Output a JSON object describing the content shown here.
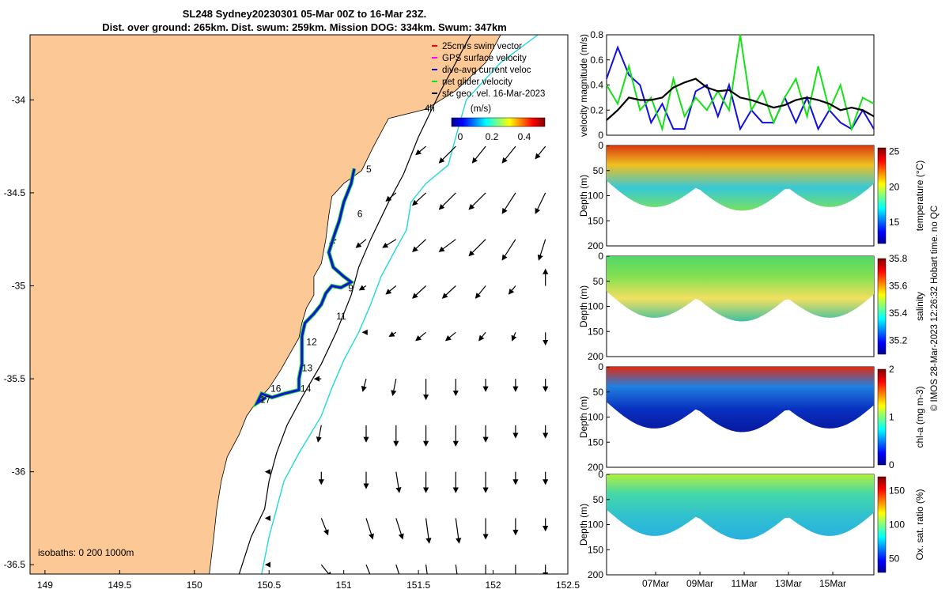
{
  "title": {
    "line1": "SL248 Sydney20230301 05-Mar 00Z to 16-Mar 23Z.",
    "line2": "Dist. over ground: 265km. Dist. swum: 259km. Mission DOG: 334km. Swum: 347km"
  },
  "colors": {
    "land": "#fbc896",
    "track": "#1010e0",
    "net_glider": "#18e018",
    "shelf_edge": "#22d8d8",
    "black": "#000000"
  },
  "chart_data": [
    {
      "type": "map",
      "name": "glider track map",
      "xlim": [
        148.9,
        152.5
      ],
      "ylim": [
        -36.55,
        -33.65
      ],
      "x_ticks": [
        149,
        149.5,
        150,
        150.5,
        151,
        151.5,
        152,
        152.5
      ],
      "x_tick_labels": [
        "149",
        "149.5",
        "150",
        "150.5",
        "151",
        "151.5",
        "152",
        "152.5"
      ],
      "y_ticks": [
        -34,
        -34.5,
        -35,
        -35.5,
        -36,
        -36.5
      ],
      "y_tick_labels": [
        "-34",
        "-34.5",
        "-35",
        "-35.5",
        "-36",
        "-36.5"
      ],
      "legend": [
        {
          "label": "25cm/s swim vector",
          "color": "#ff0000"
        },
        {
          "label": "GPS surface velocity",
          "color": "#ff00ff"
        },
        {
          "label": "dive-avg current veloc",
          "color": "#0000c8"
        },
        {
          "label": "net glider velocity",
          "color": "#18e018"
        },
        {
          "label": "sfc geo. vel. 16-Mar-2023",
          "color": "#000000"
        }
      ],
      "legend_extra": "4h",
      "colorbar": {
        "label": "(m/s)",
        "range": [
          0,
          0.5
        ],
        "ticks": [
          "0",
          "0.2",
          "0.4"
        ]
      },
      "isobaths_label": "isobaths: 0   200  1000m",
      "track_day_labels": [
        {
          "day": "5",
          "lon": 151.15,
          "lat": -34.39
        },
        {
          "day": "6",
          "lon": 151.09,
          "lat": -34.63
        },
        {
          "day": "9",
          "lon": 151.03,
          "lat": -35.03
        },
        {
          "day": "11",
          "lon": 150.95,
          "lat": -35.18
        },
        {
          "day": "12",
          "lon": 150.75,
          "lat": -35.32
        },
        {
          "day": "13",
          "lon": 150.72,
          "lat": -35.46
        },
        {
          "day": "14",
          "lon": 150.71,
          "lat": -35.57
        },
        {
          "day": "16",
          "lon": 150.51,
          "lat": -35.57
        },
        {
          "day": "17",
          "lon": 150.44,
          "lat": -35.63
        }
      ],
      "coast": [
        [
          152.05,
          -33.65
        ],
        [
          151.95,
          -33.8
        ],
        [
          151.75,
          -33.95
        ],
        [
          151.55,
          -34.05
        ],
        [
          151.3,
          -34.1
        ],
        [
          151.2,
          -34.25
        ],
        [
          151.12,
          -34.38
        ],
        [
          151.0,
          -34.45
        ],
        [
          150.92,
          -34.52
        ],
        [
          150.9,
          -34.62
        ],
        [
          150.88,
          -34.75
        ],
        [
          150.85,
          -34.88
        ],
        [
          150.8,
          -34.95
        ],
        [
          150.8,
          -35.05
        ],
        [
          150.75,
          -35.12
        ],
        [
          150.72,
          -35.2
        ],
        [
          150.7,
          -35.28
        ],
        [
          150.65,
          -35.35
        ],
        [
          150.58,
          -35.45
        ],
        [
          150.5,
          -35.55
        ],
        [
          150.42,
          -35.62
        ],
        [
          150.35,
          -35.7
        ],
        [
          150.3,
          -35.8
        ],
        [
          150.22,
          -35.92
        ],
        [
          150.18,
          -36.05
        ],
        [
          150.15,
          -36.2
        ],
        [
          150.13,
          -36.35
        ],
        [
          150.1,
          -36.55
        ]
      ],
      "isobath_1000": [
        [
          151.85,
          -33.65
        ],
        [
          151.65,
          -33.95
        ],
        [
          151.5,
          -34.2
        ],
        [
          151.4,
          -34.4
        ],
        [
          151.3,
          -34.55
        ],
        [
          151.18,
          -34.75
        ],
        [
          151.1,
          -34.9
        ],
        [
          151.05,
          -35.05
        ],
        [
          150.95,
          -35.25
        ],
        [
          150.85,
          -35.42
        ],
        [
          150.72,
          -35.6
        ],
        [
          150.62,
          -35.75
        ],
        [
          150.55,
          -35.9
        ],
        [
          150.5,
          -36.05
        ],
        [
          150.47,
          -36.2
        ],
        [
          150.38,
          -36.35
        ],
        [
          150.3,
          -36.55
        ]
      ],
      "isobath_200": [
        [
          152.3,
          -33.65
        ],
        [
          152.05,
          -33.8
        ],
        [
          151.82,
          -34.0
        ],
        [
          151.75,
          -34.2
        ],
        [
          151.7,
          -34.35
        ],
        [
          151.55,
          -34.45
        ],
        [
          151.45,
          -34.55
        ],
        [
          151.42,
          -34.7
        ],
        [
          151.35,
          -34.8
        ],
        [
          151.25,
          -34.95
        ],
        [
          151.18,
          -35.1
        ],
        [
          151.1,
          -35.25
        ],
        [
          151.0,
          -35.4
        ],
        [
          150.92,
          -35.55
        ],
        [
          150.85,
          -35.7
        ],
        [
          150.7,
          -35.9
        ],
        [
          150.6,
          -36.05
        ],
        [
          150.55,
          -36.2
        ],
        [
          150.5,
          -36.35
        ],
        [
          150.45,
          -36.55
        ]
      ],
      "glider_track": [
        [
          151.07,
          -34.37
        ],
        [
          151.05,
          -34.45
        ],
        [
          151.0,
          -34.55
        ],
        [
          150.97,
          -34.65
        ],
        [
          150.94,
          -34.72
        ],
        [
          150.9,
          -34.82
        ],
        [
          150.93,
          -34.9
        ],
        [
          151.0,
          -34.95
        ],
        [
          151.05,
          -34.98
        ],
        [
          150.98,
          -35.01
        ],
        [
          150.92,
          -35.0
        ],
        [
          150.88,
          -35.04
        ],
        [
          150.85,
          -35.1
        ],
        [
          150.8,
          -35.15
        ],
        [
          150.74,
          -35.2
        ],
        [
          150.72,
          -35.27
        ],
        [
          150.72,
          -35.35
        ],
        [
          150.72,
          -35.42
        ],
        [
          150.7,
          -35.5
        ],
        [
          150.7,
          -35.56
        ],
        [
          150.6,
          -35.58
        ],
        [
          150.52,
          -35.6
        ],
        [
          150.45,
          -35.58
        ],
        [
          150.42,
          -35.63
        ],
        [
          150.48,
          -35.6
        ]
      ],
      "vectors": [
        [
          151.55,
          -34.25,
          -0.03,
          -0.02
        ],
        [
          151.75,
          -34.25,
          -0.05,
          -0.04
        ],
        [
          151.95,
          -34.25,
          -0.04,
          -0.04
        ],
        [
          152.15,
          -34.25,
          -0.04,
          -0.04
        ],
        [
          152.35,
          -34.25,
          -0.03,
          -0.03
        ],
        [
          151.35,
          -34.5,
          -0.03,
          -0.02
        ],
        [
          151.55,
          -34.5,
          -0.04,
          -0.03
        ],
        [
          151.75,
          -34.5,
          -0.05,
          -0.04
        ],
        [
          151.95,
          -34.5,
          -0.05,
          -0.04
        ],
        [
          152.15,
          -34.5,
          -0.04,
          -0.05
        ],
        [
          152.35,
          -34.5,
          -0.03,
          -0.05
        ],
        [
          150.95,
          -34.75,
          -0.02,
          -0.01
        ],
        [
          151.15,
          -34.75,
          -0.03,
          -0.02
        ],
        [
          151.35,
          -34.75,
          -0.04,
          -0.02
        ],
        [
          151.55,
          -34.75,
          -0.04,
          -0.03
        ],
        [
          151.75,
          -34.75,
          -0.05,
          -0.03
        ],
        [
          151.95,
          -34.75,
          -0.05,
          -0.04
        ],
        [
          152.15,
          -34.75,
          -0.04,
          -0.05
        ],
        [
          152.35,
          -34.75,
          -0.02,
          -0.05
        ],
        [
          151.15,
          -35.0,
          -0.02,
          -0.01
        ],
        [
          151.35,
          -35.0,
          -0.03,
          -0.02
        ],
        [
          151.55,
          -35.0,
          -0.04,
          -0.03
        ],
        [
          151.75,
          -35.0,
          -0.04,
          -0.03
        ],
        [
          151.95,
          -35.0,
          -0.03,
          -0.03
        ],
        [
          152.15,
          -35.0,
          -0.02,
          -0.02
        ],
        [
          152.35,
          -35.0,
          0.0,
          0.04
        ],
        [
          151.15,
          -35.25,
          -0.01,
          -0.0
        ],
        [
          151.35,
          -35.25,
          -0.02,
          -0.01
        ],
        [
          151.55,
          -35.25,
          -0.03,
          -0.02
        ],
        [
          151.75,
          -35.25,
          -0.03,
          -0.02
        ],
        [
          151.95,
          -35.25,
          -0.02,
          -0.02
        ],
        [
          152.15,
          -35.25,
          -0.01,
          -0.02
        ],
        [
          152.35,
          -35.25,
          0.0,
          -0.03
        ],
        [
          150.85,
          -35.5,
          -0.02,
          0.0
        ],
        [
          151.15,
          -35.5,
          -0.01,
          -0.03
        ],
        [
          151.35,
          -35.5,
          -0.01,
          -0.04
        ],
        [
          151.55,
          -35.5,
          -0.0,
          -0.05
        ],
        [
          151.75,
          -35.5,
          -0.0,
          -0.04
        ],
        [
          151.95,
          -35.5,
          0.0,
          -0.03
        ],
        [
          152.15,
          -35.5,
          0.0,
          -0.03
        ],
        [
          152.35,
          -35.5,
          0.0,
          -0.03
        ],
        [
          150.85,
          -35.75,
          -0.01,
          -0.04
        ],
        [
          151.15,
          -35.75,
          0.0,
          -0.04
        ],
        [
          151.35,
          -35.75,
          0.0,
          -0.05
        ],
        [
          151.55,
          -35.75,
          0.0,
          -0.05
        ],
        [
          151.75,
          -35.75,
          0.0,
          -0.05
        ],
        [
          151.95,
          -35.75,
          0.0,
          -0.04
        ],
        [
          152.15,
          -35.75,
          0.0,
          -0.03
        ],
        [
          152.35,
          -35.75,
          0.0,
          -0.03
        ],
        [
          150.5,
          -36.0,
          -0.01,
          0.0
        ],
        [
          150.85,
          -36.0,
          0.0,
          -0.03
        ],
        [
          151.15,
          -36.0,
          0.0,
          -0.04
        ],
        [
          151.35,
          -36.0,
          0.01,
          -0.05
        ],
        [
          151.55,
          -36.0,
          0.0,
          -0.05
        ],
        [
          151.75,
          -36.0,
          0.0,
          -0.05
        ],
        [
          151.95,
          -36.0,
          0.0,
          -0.05
        ],
        [
          152.15,
          -36.0,
          0.0,
          -0.03
        ],
        [
          152.35,
          -36.0,
          0.0,
          -0.03
        ],
        [
          150.5,
          -36.25,
          -0.01,
          0.0
        ],
        [
          150.85,
          -36.25,
          0.02,
          -0.04
        ],
        [
          151.15,
          -36.25,
          0.02,
          -0.05
        ],
        [
          151.35,
          -36.25,
          0.02,
          -0.05
        ],
        [
          151.55,
          -36.25,
          0.01,
          -0.06
        ],
        [
          151.75,
          -36.25,
          0.01,
          -0.06
        ],
        [
          151.95,
          -36.25,
          0.0,
          -0.05
        ],
        [
          152.15,
          -36.25,
          0.0,
          -0.04
        ],
        [
          152.35,
          -36.25,
          0.0,
          -0.03
        ],
        [
          150.5,
          -36.5,
          -0.01,
          0.0
        ],
        [
          150.85,
          -36.5,
          0.03,
          -0.03
        ],
        [
          151.15,
          -36.5,
          0.02,
          -0.04
        ],
        [
          151.35,
          -36.5,
          0.02,
          -0.05
        ],
        [
          151.55,
          -36.5,
          0.01,
          -0.06
        ],
        [
          151.75,
          -36.5,
          0.01,
          -0.06
        ],
        [
          151.95,
          -36.5,
          0.0,
          -0.05
        ],
        [
          152.15,
          -36.5,
          0.0,
          -0.04
        ],
        [
          152.35,
          -36.5,
          0.0,
          -0.03
        ]
      ]
    },
    {
      "type": "line",
      "name": "velocity magnitude",
      "ylabel": "velocity magnitude (m/s)",
      "ylim": [
        0,
        0.8
      ],
      "y_tick_labels": [
        "0",
        "0.2",
        "0.4",
        "0.6",
        "0.8"
      ],
      "x": [
        5,
        5.5,
        6,
        6.5,
        7,
        7.5,
        8,
        8.5,
        9,
        9.5,
        10,
        10.5,
        11,
        11.5,
        12,
        12.5,
        13,
        13.5,
        14,
        14.5,
        15,
        15.5,
        16,
        16.5,
        17
      ],
      "series": [
        {
          "name": "dive-avg current veloc",
          "color": "#1010e0",
          "values": [
            0.45,
            0.7,
            0.48,
            0.4,
            0.1,
            0.25,
            0.05,
            0.05,
            0.35,
            0.4,
            0.15,
            0.4,
            0.05,
            0.2,
            0.1,
            0.1,
            0.3,
            0.1,
            0.3,
            0.05,
            0.2,
            0.1,
            0.05,
            0.2,
            0.05
          ]
        },
        {
          "name": "net glider velocity",
          "color": "#18e018",
          "values": [
            0.4,
            0.25,
            0.55,
            0.2,
            0.3,
            0.05,
            0.45,
            0.15,
            0.3,
            0.2,
            0.35,
            0.2,
            0.8,
            0.2,
            0.35,
            0.1,
            0.3,
            0.45,
            0.15,
            0.55,
            0.2,
            0.4,
            0.05,
            0.3,
            0.25
          ]
        },
        {
          "name": "sfc geo. vel.",
          "color": "#000000",
          "values": [
            0.12,
            0.2,
            0.3,
            0.28,
            0.28,
            0.3,
            0.38,
            0.42,
            0.45,
            0.38,
            0.35,
            0.36,
            0.3,
            0.28,
            0.25,
            0.22,
            0.24,
            0.28,
            0.3,
            0.28,
            0.25,
            0.2,
            0.22,
            0.2,
            0.15
          ]
        }
      ]
    },
    {
      "type": "heatmap",
      "name": "temperature section",
      "ylabel": "Depth (m)",
      "ylim": [
        200,
        0
      ],
      "y_tick_labels": [
        "0",
        "50",
        "100",
        "150",
        "200"
      ],
      "colorbar": {
        "label": "temperature (°C)",
        "range": [
          12,
          25.5
        ],
        "ticks": [
          "15",
          "20",
          "25"
        ]
      }
    },
    {
      "type": "heatmap",
      "name": "salinity section",
      "ylabel": "Depth (m)",
      "ylim": [
        200,
        0
      ],
      "y_tick_labels": [
        "0",
        "50",
        "100",
        "150",
        "200"
      ],
      "colorbar": {
        "label": "salinity",
        "range": [
          35.1,
          35.8
        ],
        "ticks": [
          "35.2",
          "35.4",
          "35.6",
          "35.8"
        ]
      }
    },
    {
      "type": "heatmap",
      "name": "chlorophyll section",
      "ylabel": "Depth (m)",
      "ylim": [
        200,
        0
      ],
      "y_tick_labels": [
        "0",
        "50",
        "100",
        "150",
        "200"
      ],
      "colorbar": {
        "label": "chl-a (mg m-3)",
        "range": [
          0,
          2
        ],
        "ticks": [
          "0",
          "1",
          "2"
        ]
      }
    },
    {
      "type": "heatmap",
      "name": "oxygen saturation section",
      "ylabel": "Depth (m)",
      "ylim": [
        200,
        0
      ],
      "y_tick_labels": [
        "0",
        "50",
        "100",
        "150",
        "200"
      ],
      "x_tick_labels": [
        "07Mar",
        "09Mar",
        "11Mar",
        "13Mar",
        "15Mar"
      ],
      "colorbar": {
        "label": "Ox. sat. ratio (%)",
        "range": [
          30,
          170
        ],
        "ticks": [
          "50",
          "100",
          "150"
        ]
      }
    }
  ],
  "footer": "© IMOS 28-Mar-2023 12:26:32 Hobart time. no QC"
}
